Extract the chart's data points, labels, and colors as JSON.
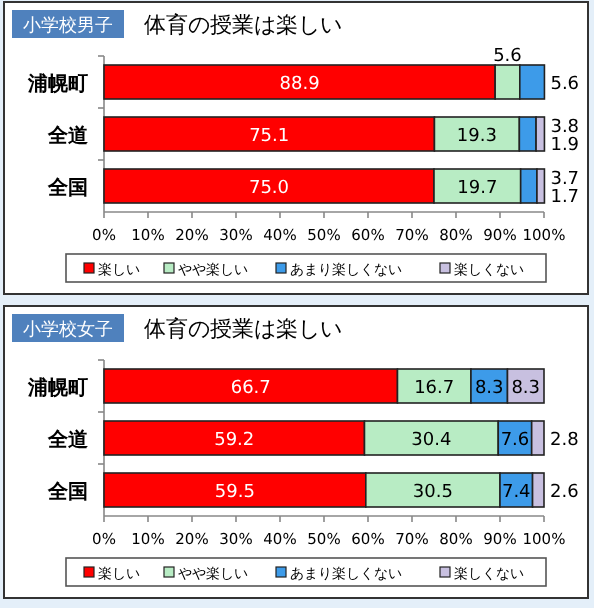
{
  "chart_data": [
    {
      "type": "bar",
      "orientation": "horizontal",
      "stacked": true,
      "subtitle": "小学校男子",
      "title": "体育の授業は楽しい",
      "categories": [
        "浦幌町",
        "全道",
        "全国"
      ],
      "series": [
        {
          "name": "楽しい",
          "color": "#ff0000",
          "values": [
            88.9,
            75.1,
            75.0
          ],
          "value_labels": [
            "88.9",
            "75.1",
            "75.0"
          ]
        },
        {
          "name": "やや楽しい",
          "color": "#b8ecc4",
          "values": [
            5.6,
            19.3,
            19.7
          ],
          "value_labels": [
            "5.6",
            "19.3",
            "19.7"
          ]
        },
        {
          "name": "あまり楽しくない",
          "color": "#3d9be9",
          "values": [
            5.6,
            3.8,
            3.7
          ],
          "value_labels": [
            "5.6",
            "3.8",
            "3.7"
          ]
        },
        {
          "name": "楽しくない",
          "color": "#c8c0e0",
          "values": [
            0,
            1.9,
            1.7
          ],
          "value_labels": [
            null,
            "1.9",
            "1.7"
          ]
        }
      ],
      "xlim": [
        0,
        100
      ],
      "xticks": [
        {
          "value": 0,
          "label": "0%"
        },
        {
          "value": 10,
          "label": "10%"
        },
        {
          "value": 20,
          "label": "20%"
        },
        {
          "value": 30,
          "label": "30%"
        },
        {
          "value": 40,
          "label": "40%"
        },
        {
          "value": 50,
          "label": "50%"
        },
        {
          "value": 60,
          "label": "60%"
        },
        {
          "value": 70,
          "label": "70%"
        },
        {
          "value": 80,
          "label": "80%"
        },
        {
          "value": 90,
          "label": "90%"
        },
        {
          "value": 100,
          "label": "100%"
        }
      ],
      "legend": "bottom"
    },
    {
      "type": "bar",
      "orientation": "horizontal",
      "stacked": true,
      "subtitle": "小学校女子",
      "title": "体育の授業は楽しい",
      "categories": [
        "浦幌町",
        "全道",
        "全国"
      ],
      "series": [
        {
          "name": "楽しい",
          "color": "#ff0000",
          "values": [
            66.7,
            59.2,
            59.5
          ],
          "value_labels": [
            "66.7",
            "59.2",
            "59.5"
          ]
        },
        {
          "name": "やや楽しい",
          "color": "#b8ecc4",
          "values": [
            16.7,
            30.4,
            30.5
          ],
          "value_labels": [
            "16.7",
            "30.4",
            "30.5"
          ]
        },
        {
          "name": "あまり楽しくない",
          "color": "#3d9be9",
          "values": [
            8.3,
            7.6,
            7.4
          ],
          "value_labels": [
            "8.3",
            "7.6",
            "7.4"
          ]
        },
        {
          "name": "楽しくない",
          "color": "#c8c0e0",
          "values": [
            8.3,
            2.8,
            2.6
          ],
          "value_labels": [
            "8.3",
            "2.8",
            "2.6"
          ]
        }
      ],
      "xlim": [
        0,
        100
      ],
      "xticks": [
        {
          "value": 0,
          "label": "0%"
        },
        {
          "value": 10,
          "label": "10%"
        },
        {
          "value": 20,
          "label": "20%"
        },
        {
          "value": 30,
          "label": "30%"
        },
        {
          "value": 40,
          "label": "40%"
        },
        {
          "value": 50,
          "label": "50%"
        },
        {
          "value": 60,
          "label": "60%"
        },
        {
          "value": 70,
          "label": "70%"
        },
        {
          "value": 80,
          "label": "80%"
        },
        {
          "value": 90,
          "label": "90%"
        },
        {
          "value": 100,
          "label": "100%"
        }
      ],
      "legend": "bottom"
    }
  ]
}
